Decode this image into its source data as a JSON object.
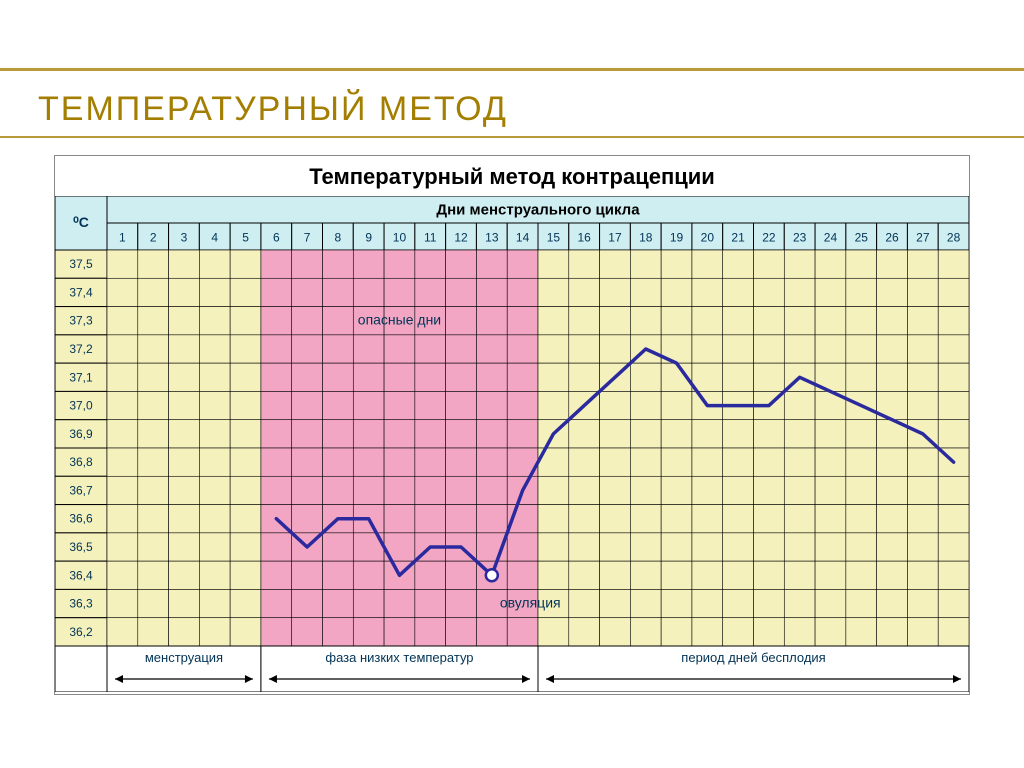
{
  "slide_title": "Температурный метод",
  "accent_color": "#b89a3a",
  "title_color": "#a37e00",
  "chart": {
    "title": "Температурный метод контрацепции",
    "header_bg": "#cfeef2",
    "grid_bg": "#f5f1bd",
    "pink_bg": "#f2a6c4",
    "grid_line": "#000",
    "line_color": "#2a2a9e",
    "line_width": 3.5,
    "y_label_unit": "⁰С",
    "days_label": "Дни менструального цикла",
    "days": [
      "1",
      "2",
      "3",
      "4",
      "5",
      "6",
      "7",
      "8",
      "9",
      "10",
      "11",
      "12",
      "13",
      "14",
      "15",
      "16",
      "17",
      "18",
      "19",
      "20",
      "21",
      "22",
      "23",
      "24",
      "25",
      "26",
      "27",
      "28"
    ],
    "y_ticks": [
      "37,5",
      "37,4",
      "37,3",
      "37,2",
      "37,1",
      "37,0",
      "36,9",
      "36,8",
      "36,7",
      "36,6",
      "36,5",
      "36,4",
      "36,3",
      "36,2"
    ],
    "y_min": 36.2,
    "y_max": 37.5,
    "pink_start_day": 6,
    "pink_end_day": 14,
    "ovulation_day": 13,
    "series": [
      {
        "d": 6,
        "t": 36.6
      },
      {
        "d": 7,
        "t": 36.5
      },
      {
        "d": 8,
        "t": 36.6
      },
      {
        "d": 9,
        "t": 36.6
      },
      {
        "d": 10,
        "t": 36.4
      },
      {
        "d": 11,
        "t": 36.5
      },
      {
        "d": 12,
        "t": 36.5
      },
      {
        "d": 13,
        "t": 36.4
      },
      {
        "d": 14,
        "t": 36.7
      },
      {
        "d": 15,
        "t": 36.9
      },
      {
        "d": 16,
        "t": 37.0
      },
      {
        "d": 17,
        "t": 37.1
      },
      {
        "d": 18,
        "t": 37.2
      },
      {
        "d": 19,
        "t": 37.15
      },
      {
        "d": 20,
        "t": 37.0
      },
      {
        "d": 21,
        "t": 37.0
      },
      {
        "d": 22,
        "t": 37.0
      },
      {
        "d": 23,
        "t": 37.1
      },
      {
        "d": 24,
        "t": 37.05
      },
      {
        "d": 25,
        "t": 37.0
      },
      {
        "d": 26,
        "t": 36.95
      },
      {
        "d": 27,
        "t": 36.9
      },
      {
        "d": 28,
        "t": 36.8
      }
    ],
    "label_danger": "опасные дни",
    "label_ovulation": "овуляция",
    "phases": [
      {
        "name": "менструация",
        "start": 1,
        "end": 5
      },
      {
        "name": "фаза низких температур",
        "start": 6,
        "end": 14
      },
      {
        "name": "период дней бесплодия",
        "start": 15,
        "end": 28
      }
    ]
  }
}
